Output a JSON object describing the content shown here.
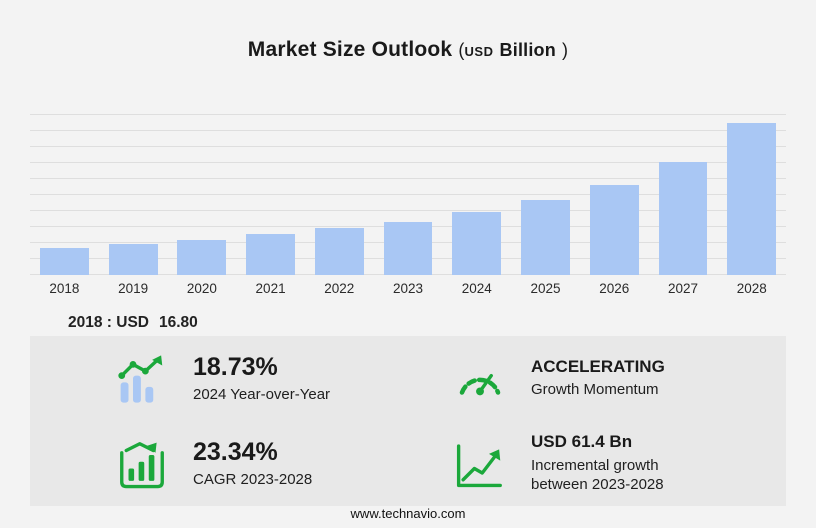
{
  "title": {
    "main": "Market Size Outlook",
    "paren_open": "(",
    "currency": "USD",
    "unit": "Billion",
    "paren_close": ")"
  },
  "chart_data": {
    "type": "bar",
    "title": "Market Size Outlook (USD Billion)",
    "categories": [
      "2018",
      "2019",
      "2020",
      "2021",
      "2022",
      "2023",
      "2024",
      "2025",
      "2026",
      "2027",
      "2028"
    ],
    "values": [
      16.8,
      19.2,
      22.0,
      25.2,
      28.9,
      33.1,
      39.3,
      46.6,
      55.8,
      70.5,
      94.5
    ],
    "xlabel": "",
    "ylabel": "",
    "ylim": [
      0,
      100
    ],
    "grid": true,
    "legend": false,
    "bar_color": "#a9c7f4"
  },
  "base_note": {
    "label": "2018 : USD",
    "value": "16.80"
  },
  "stats": {
    "yoy": {
      "value": "18.73%",
      "label": "2024 Year-over-Year"
    },
    "momentum": {
      "value": "ACCELERATING",
      "label": "Growth Momentum"
    },
    "cagr": {
      "value": "23.34%",
      "label": "CAGR 2023-2028"
    },
    "incremental": {
      "value": "USD 61.4 Bn",
      "label_line1": "Incremental growth",
      "label_line2": "between 2023-2028"
    }
  },
  "footer": {
    "url": "www.technavio.com"
  },
  "colors": {
    "background": "#f3f3f3",
    "panel": "#e8e8e8",
    "grid": "#dedede",
    "bar": "#a9c7f4",
    "green": "#1ba83b"
  }
}
